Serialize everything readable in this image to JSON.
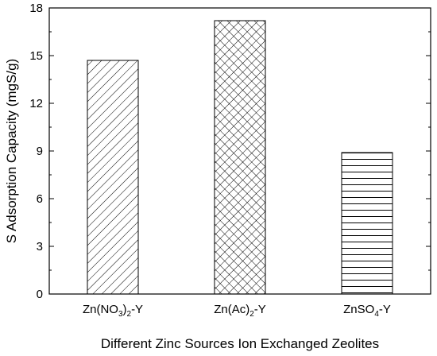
{
  "chart_data": {
    "type": "bar",
    "categories": [
      {
        "label": "Zn(NO3)2-Y",
        "pattern": "diagonal-lines"
      },
      {
        "label": "Zn(Ac)2-Y",
        "pattern": "crosshatch"
      },
      {
        "label": "ZnSO4-Y",
        "pattern": "horizontal-lines"
      }
    ],
    "category_display": [
      [
        {
          "t": "Zn(NO"
        },
        {
          "t": "3",
          "sub": true
        },
        {
          "t": ")"
        },
        {
          "t": "2",
          "sub": true
        },
        {
          "t": "-Y"
        }
      ],
      [
        {
          "t": "Zn(Ac)"
        },
        {
          "t": "2",
          "sub": true
        },
        {
          "t": "-Y"
        }
      ],
      [
        {
          "t": "ZnSO"
        },
        {
          "t": "4",
          "sub": true
        },
        {
          "t": "-Y"
        }
      ]
    ],
    "values": [
      14.7,
      17.2,
      8.9
    ],
    "xlabel": "Different Zinc Sources Ion Exchanged Zeolites",
    "ylabel": "S Adsorption Capacity (mgS/g)",
    "ylim": [
      0,
      18
    ],
    "yticks": [
      "0",
      "3",
      "6",
      "9",
      "12",
      "15",
      "18"
    ],
    "grid": false,
    "bar_fill": "#ffffff",
    "line_color": "#000000"
  }
}
